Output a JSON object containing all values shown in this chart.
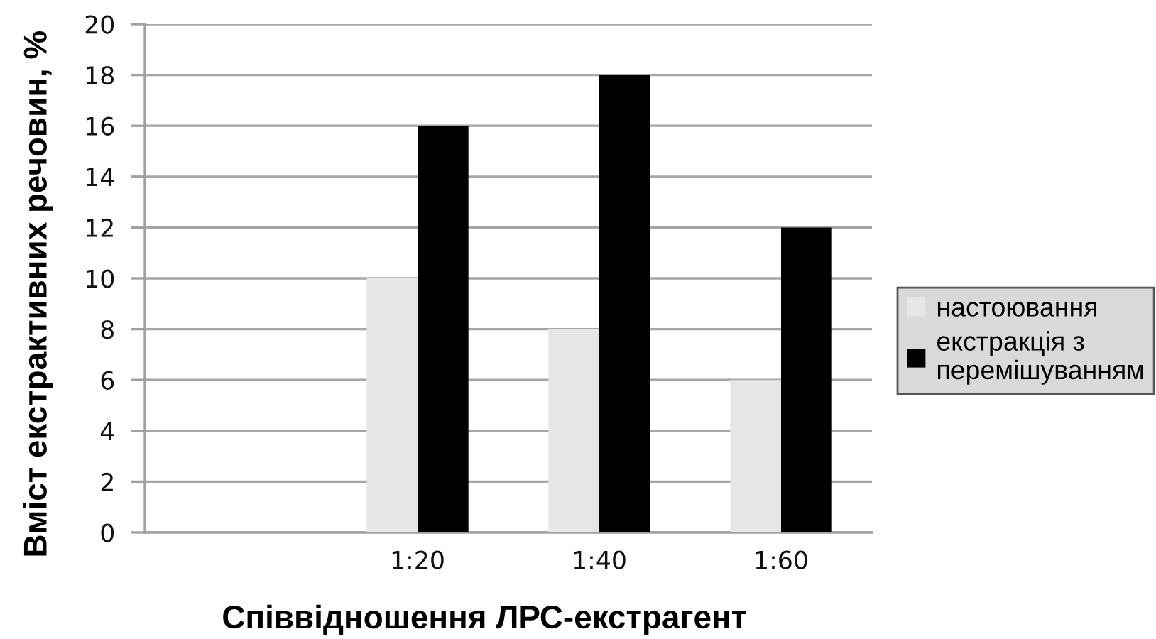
{
  "chart_data": {
    "type": "bar",
    "xlabel": "Співвідношення ЛРС-екстрагент",
    "ylabel": "Вміст екстрактивних речовин, %",
    "categories": [
      null,
      "1:20",
      "1:40",
      "1:60"
    ],
    "series": [
      {
        "name": "настоювання",
        "color": "#e6e6e6",
        "values": [
          null,
          10,
          8,
          6
        ]
      },
      {
        "name": "екстракція з\nперемішуванням",
        "color": "#000000",
        "values": [
          null,
          16,
          18,
          12
        ]
      }
    ],
    "ylim": [
      0,
      20
    ],
    "yticks": [
      0,
      2,
      4,
      6,
      8,
      10,
      12,
      14,
      16,
      18,
      20
    ],
    "grid": "y",
    "legend": "right"
  }
}
